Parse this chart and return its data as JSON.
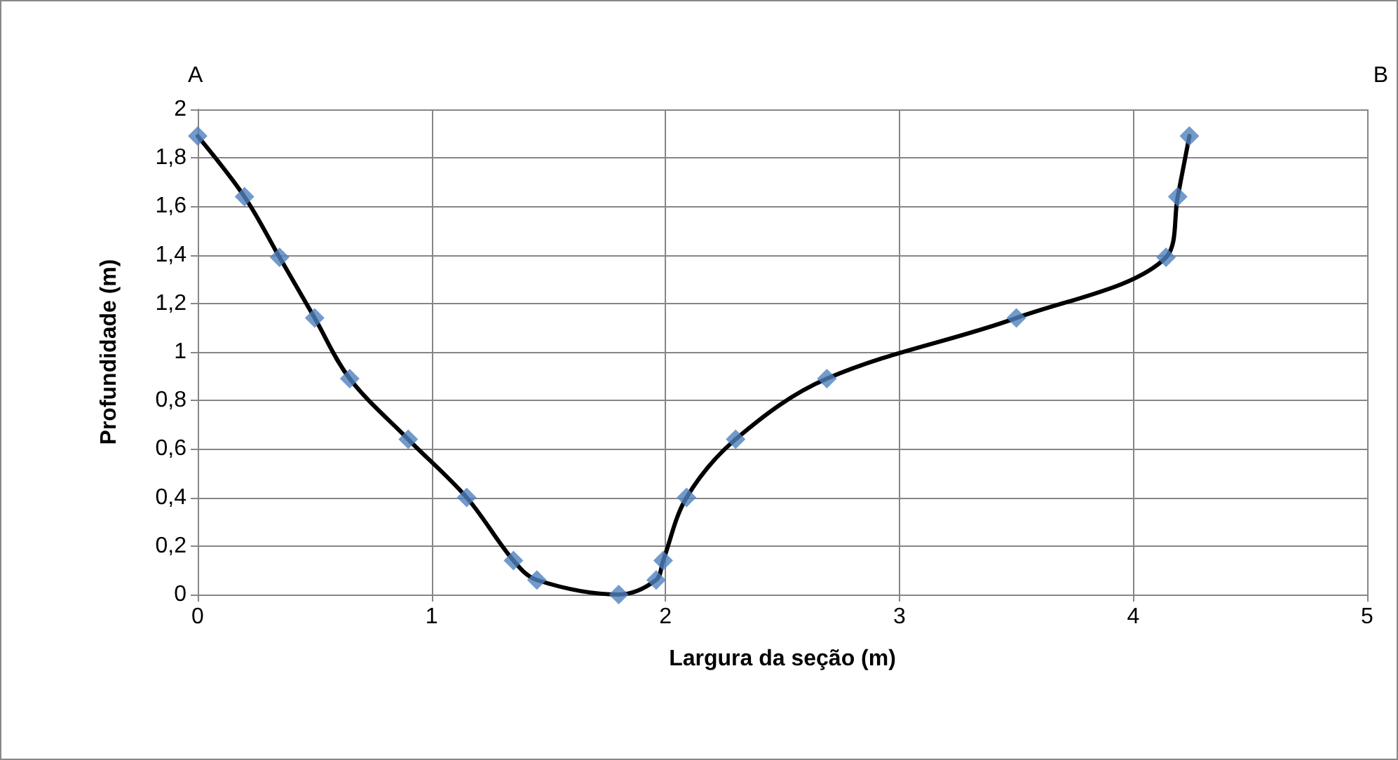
{
  "chart_data": {
    "type": "line",
    "xlabel": "Largura da seção (m)",
    "ylabel": "Profundidade (m)",
    "annotations": [
      "A",
      "B"
    ],
    "x": [
      0,
      0.2,
      0.35,
      0.5,
      0.65,
      0.9,
      1.15,
      1.35,
      1.45,
      1.8,
      1.96,
      1.99,
      2.09,
      2.3,
      2.69,
      3.5,
      4.14,
      4.19,
      4.24
    ],
    "series": [
      {
        "color": "#000000",
        "marker": "none",
        "values": [
          1.89,
          1.64,
          1.39,
          1.14,
          0.89,
          0.64,
          0.4,
          0.14,
          0.06,
          0,
          0.06,
          0.14,
          0.4,
          0.64,
          0.89,
          1.14,
          1.39,
          1.64,
          1.89
        ]
      },
      {
        "type": "scatter",
        "color": "#4f81bd",
        "marker": "diamond",
        "values": [
          1.89,
          1.64,
          1.39,
          1.14,
          0.89,
          0.64,
          0.4,
          0.14,
          0.06,
          0,
          0.06,
          0.14,
          0.4,
          0.64,
          0.89,
          1.14,
          1.39,
          1.64,
          1.89
        ]
      }
    ],
    "xlim": [
      0,
      5
    ],
    "xticks": [
      0,
      1,
      2,
      3,
      4,
      5
    ],
    "ylim": [
      0,
      2
    ],
    "yticks": [
      0,
      {
        "value": 0.2,
        "label": "0,2"
      },
      {
        "value": 0.4,
        "label": "0,4"
      },
      {
        "value": 0.6,
        "label": "0,6"
      },
      {
        "value": 0.8,
        "label": "0,8"
      },
      1,
      {
        "value": 1.2,
        "label": "1,2"
      },
      {
        "value": 1.4,
        "label": "1,4"
      },
      {
        "value": 1.6,
        "label": "1,6"
      },
      {
        "value": 1.8,
        "label": "1,8"
      },
      2
    ],
    "grid": true
  }
}
